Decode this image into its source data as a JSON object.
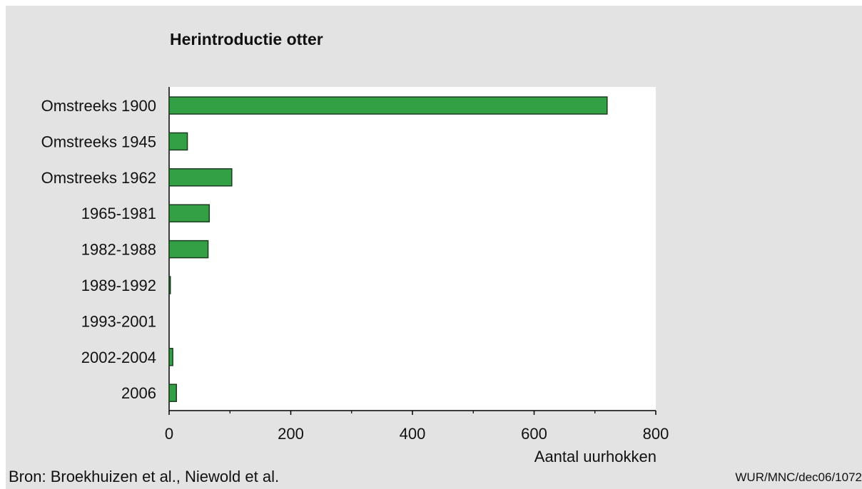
{
  "chart_data": {
    "type": "bar",
    "orientation": "horizontal",
    "title": "Herintroductie otter",
    "categories": [
      "Omstreeks 1900",
      "Omstreeks 1945",
      "Omstreeks 1962",
      "1965-1981",
      "1982-1988",
      "1989-1992",
      "1993-2001",
      "2002-2004",
      "2006"
    ],
    "values": [
      720,
      30,
      103,
      66,
      64,
      2,
      0,
      6,
      12
    ],
    "xlabel": "Aantal uurhokken",
    "ylabel": "",
    "xlim": [
      0,
      800
    ],
    "xticks": [
      "0",
      "200",
      "400",
      "600",
      "800"
    ],
    "grid": false,
    "bar_color": "#33a046",
    "bar_edge_color": "#1a3d1f"
  },
  "footer": {
    "source": "Bron: Broekhuizen et al., Niewold et al.",
    "credit": "WUR/MNC/dec06/1072"
  }
}
